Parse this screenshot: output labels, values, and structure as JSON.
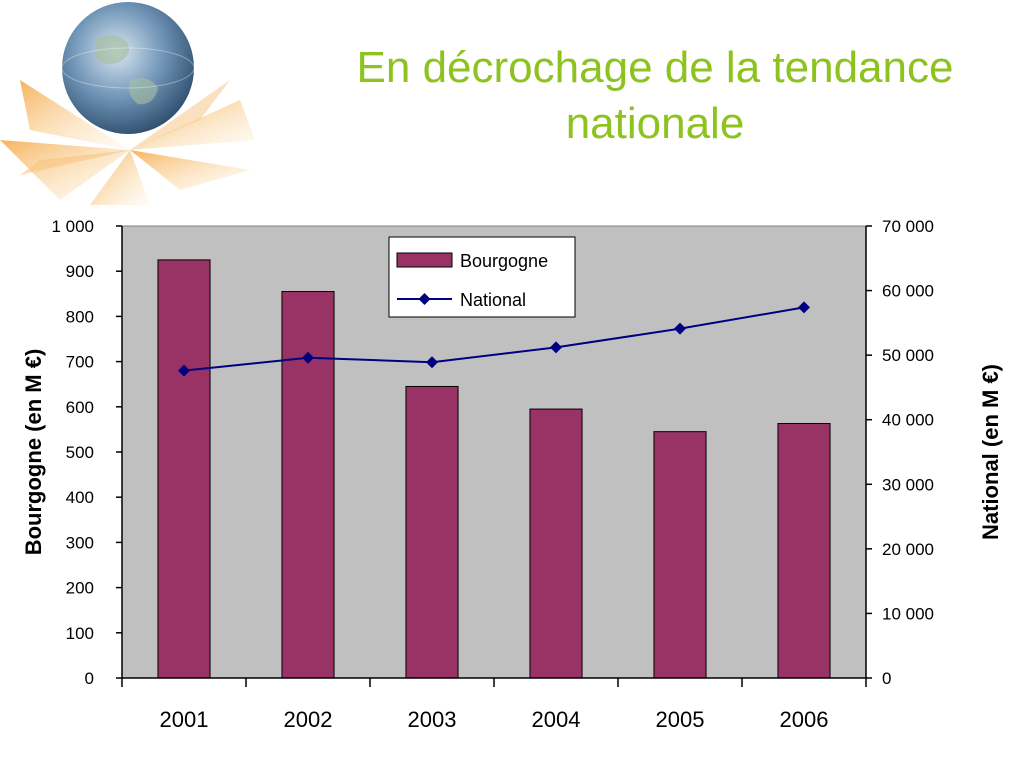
{
  "slide": {
    "title": "En décrochage de la tendance nationale"
  },
  "colors": {
    "title": "#8dc21f",
    "plot_background": "#c0c0c0",
    "bar_fill": "#993366",
    "line": "#000080"
  },
  "chart_data": {
    "type": "bar",
    "categories": [
      "2001",
      "2002",
      "2003",
      "2004",
      "2005",
      "2006"
    ],
    "series": [
      {
        "name": "Bourgogne",
        "kind": "bar",
        "axis": "left",
        "values": [
          925,
          855,
          645,
          595,
          545,
          563
        ]
      },
      {
        "name": "National",
        "kind": "line",
        "axis": "right",
        "marker": "diamond",
        "values": [
          47600,
          49600,
          48900,
          51200,
          54100,
          57400
        ]
      }
    ],
    "ylabel": "Bourgogne (en M €)",
    "ylabel_right": "National (en M €)",
    "ylim": [
      0,
      1000
    ],
    "ylim_right": [
      0,
      70000
    ],
    "yticks": [
      "0",
      "100",
      "200",
      "300",
      "400",
      "500",
      "600",
      "700",
      "800",
      "900",
      "1 000"
    ],
    "yticks_right": [
      "0",
      "10 000",
      "20 000",
      "30 000",
      "40 000",
      "50 000",
      "60 000",
      "70 000"
    ],
    "grid": false,
    "legend_position": "top-center",
    "legend": [
      "Bourgogne",
      "National"
    ]
  }
}
